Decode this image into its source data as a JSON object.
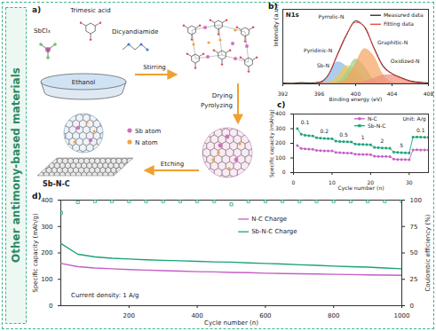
{
  "side_label": "Other antimony-based materials",
  "scheme": {
    "panel_label": "a)",
    "reagents": [
      "Trimesic acid",
      "SbCl₃",
      "Dicyandiamide"
    ],
    "solvent": "Ethanol",
    "steps": [
      "Stirring",
      "Drying",
      "Pyrolyzing",
      "Etching"
    ],
    "key_items": [
      {
        "name": "Sb atom",
        "color": "#d46fc0"
      },
      {
        "name": "N atom",
        "color": "#f2a541"
      }
    ],
    "product": "Sb-N-C"
  },
  "chart_data": [
    {
      "panel_label": "b)",
      "type": "area",
      "title": "N1s",
      "xlabel": "Binding energy (eV)",
      "ylabel": "Intensity (a.u.)",
      "x": [
        392,
        393,
        394,
        395,
        396,
        397,
        398,
        399,
        400,
        401,
        402,
        403,
        404,
        405,
        406,
        407,
        408
      ],
      "series": [
        {
          "name": "Pyridinic-N",
          "type": "area",
          "color": "#8ab6e8",
          "values": [
            0,
            0,
            0,
            0,
            2,
            19,
            52,
            41,
            9,
            1,
            0,
            0,
            0,
            0,
            0,
            0,
            0
          ]
        },
        {
          "name": "Sb-N",
          "type": "area",
          "color": "#f2c94c",
          "values": [
            0,
            0,
            0,
            0,
            0,
            2,
            16,
            43,
            33,
            8,
            0,
            0,
            0,
            0,
            0,
            0,
            0
          ]
        },
        {
          "name": "Pyrrolic-N",
          "type": "area",
          "color": "#9bd08a",
          "values": [
            0,
            0,
            0,
            0,
            0,
            0,
            3,
            25,
            59,
            40,
            8,
            0,
            0,
            0,
            0,
            0,
            0
          ]
        },
        {
          "name": "Graphitic-N",
          "type": "area",
          "color": "#f5a35c",
          "values": [
            0,
            0,
            0,
            0,
            0,
            0,
            1,
            11,
            47,
            84,
            66,
            22,
            3,
            0,
            0,
            0,
            0
          ]
        },
        {
          "name": "Oxidized-N",
          "type": "area",
          "color": "#f08f7f",
          "values": [
            0,
            0,
            0,
            0,
            0,
            0,
            0,
            0,
            1,
            5,
            12,
            20,
            21,
            14,
            6,
            2,
            0
          ]
        },
        {
          "name": "Measured data",
          "type": "line",
          "color": "#222222",
          "values": [
            2,
            1,
            3,
            2,
            4,
            22,
            70,
            118,
            152,
            136,
            88,
            44,
            25,
            15,
            7,
            4,
            2
          ]
        },
        {
          "name": "Fitting data",
          "type": "line",
          "color": "#e8413c",
          "values": [
            0,
            0,
            0,
            0,
            2,
            21,
            72,
            120,
            149,
            138,
            86,
            42,
            24,
            14,
            6,
            2,
            0
          ]
        }
      ],
      "xlim": [
        392,
        408
      ],
      "xticks": [
        392,
        396,
        400,
        404,
        408
      ],
      "ylim": [
        0,
        180
      ],
      "tick_labels": "x"
    },
    {
      "panel_label": "c)",
      "type": "line",
      "xlabel": "Cycle number (n)",
      "ylabel": "Specific capacity (mAh/g)",
      "x": [
        1,
        2,
        3,
        4,
        5,
        6,
        7,
        8,
        9,
        10,
        11,
        12,
        13,
        14,
        15,
        16,
        17,
        18,
        19,
        20,
        21,
        22,
        23,
        24,
        25,
        26,
        27,
        28,
        29,
        30,
        31,
        32,
        33,
        34,
        35
      ],
      "series": [
        {
          "name": "N-C",
          "color": "#c45ec8",
          "marker": "circle",
          "values": [
            185,
            165,
            162,
            160,
            159,
            152,
            150,
            149,
            148,
            148,
            138,
            136,
            135,
            134,
            134,
            126,
            125,
            124,
            124,
            123,
            112,
            111,
            110,
            110,
            109,
            92,
            90,
            89,
            89,
            88,
            155,
            156,
            155,
            155,
            154
          ]
        },
        {
          "name": "Sb-N-C",
          "color": "#1aa37a",
          "marker": "square",
          "values": [
            300,
            262,
            255,
            252,
            250,
            238,
            235,
            233,
            232,
            231,
            215,
            212,
            211,
            210,
            209,
            195,
            193,
            192,
            191,
            190,
            172,
            170,
            168,
            167,
            166,
            140,
            138,
            136,
            135,
            134,
            242,
            243,
            242,
            241,
            240
          ]
        }
      ],
      "current_densities": [
        0.1,
        0.2,
        0.5,
        1,
        2,
        5,
        0.1
      ],
      "annotations": [
        "Unit: A/g"
      ],
      "xlim": [
        0,
        35
      ],
      "xticks": [
        0,
        10,
        20,
        30
      ],
      "ylim": [
        0,
        400
      ],
      "yticks": [
        0,
        100,
        200,
        300,
        400
      ],
      "legend": "top-right"
    },
    {
      "panel_label": "d)",
      "type": "line",
      "xlabel": "Cycle number (n)",
      "ylabel": "Specific capacity (mAh/g)",
      "x": [
        1,
        50,
        100,
        150,
        200,
        250,
        300,
        350,
        400,
        450,
        500,
        550,
        600,
        650,
        700,
        750,
        800,
        850,
        900,
        950,
        1000
      ],
      "series": [
        {
          "name": "N-C Charge",
          "type": "line",
          "color": "#c45ec8",
          "values": [
            160,
            148,
            143,
            140,
            137,
            135,
            133,
            131,
            129,
            128,
            126,
            125,
            123,
            122,
            121,
            120,
            119,
            118,
            117,
            116,
            115
          ]
        },
        {
          "name": "Sb-N-C Charge",
          "type": "line",
          "color": "#1aa37a",
          "values": [
            235,
            195,
            185,
            180,
            177,
            174,
            172,
            170,
            168,
            166,
            165,
            162,
            160,
            158,
            155,
            153,
            150,
            148,
            146,
            143,
            140
          ]
        },
        {
          "name": "Coulombic efficiency (%)",
          "type": "scatter",
          "marker": "square",
          "axis": "y2",
          "color": "#1aa37a",
          "values": [
            88,
            98,
            99,
            99,
            99,
            99,
            99,
            99,
            99,
            99,
            96,
            99,
            99,
            99,
            99,
            99,
            99,
            99,
            99,
            99,
            99
          ]
        }
      ],
      "annotations": [
        "Current density: 1 A/g"
      ],
      "xlim": [
        0,
        1000
      ],
      "xticks": [
        200,
        400,
        600,
        800,
        1000
      ],
      "ylim": [
        0,
        400
      ],
      "yticks": [
        0,
        100,
        200,
        300,
        400
      ],
      "y2lim": [
        0,
        100
      ],
      "y2ticks": [
        0,
        25,
        50,
        75,
        100
      ],
      "legend": "top"
    }
  ]
}
